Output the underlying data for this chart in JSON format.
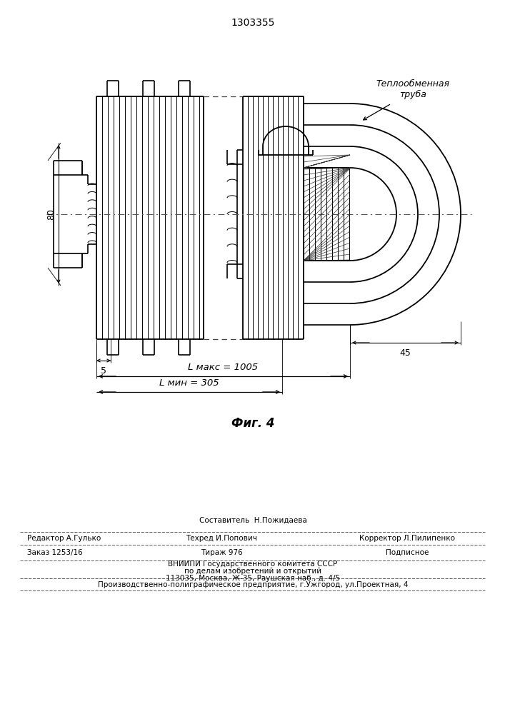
{
  "patent_number": "1303355",
  "fig_caption": "Фиг. 4",
  "label_teploobn": "Теплообменная\nтруба",
  "dim_80": "80",
  "dim_5": "5",
  "dim_45": "45",
  "dim_lmax": "L макс = 1005",
  "dim_lmin": "L мин = 305",
  "footer_line1": "Составитель  Н.Пожидаева",
  "footer_line2_left": "Редактор А.Гулько",
  "footer_line2_mid": "Техред И.Попович",
  "footer_line2_right": "Корректор Л.Пилипенко",
  "footer_line3_left": "Заказ 1253/16",
  "footer_line3_mid": "Тираж 976",
  "footer_line3_right": "Подписное",
  "footer_line4": "ВНИИПИ Государственного комитета СССР",
  "footer_line5": "по делам изобретений и открытий",
  "footer_line6": "113035, Москва, Ж-35, Раушская наб., д. 4/5",
  "footer_last": "Производственно-полиграфическое предприятие, г.Ужгород, ул.Проектная, 4",
  "bg_color": "#ffffff",
  "line_color": "#000000"
}
